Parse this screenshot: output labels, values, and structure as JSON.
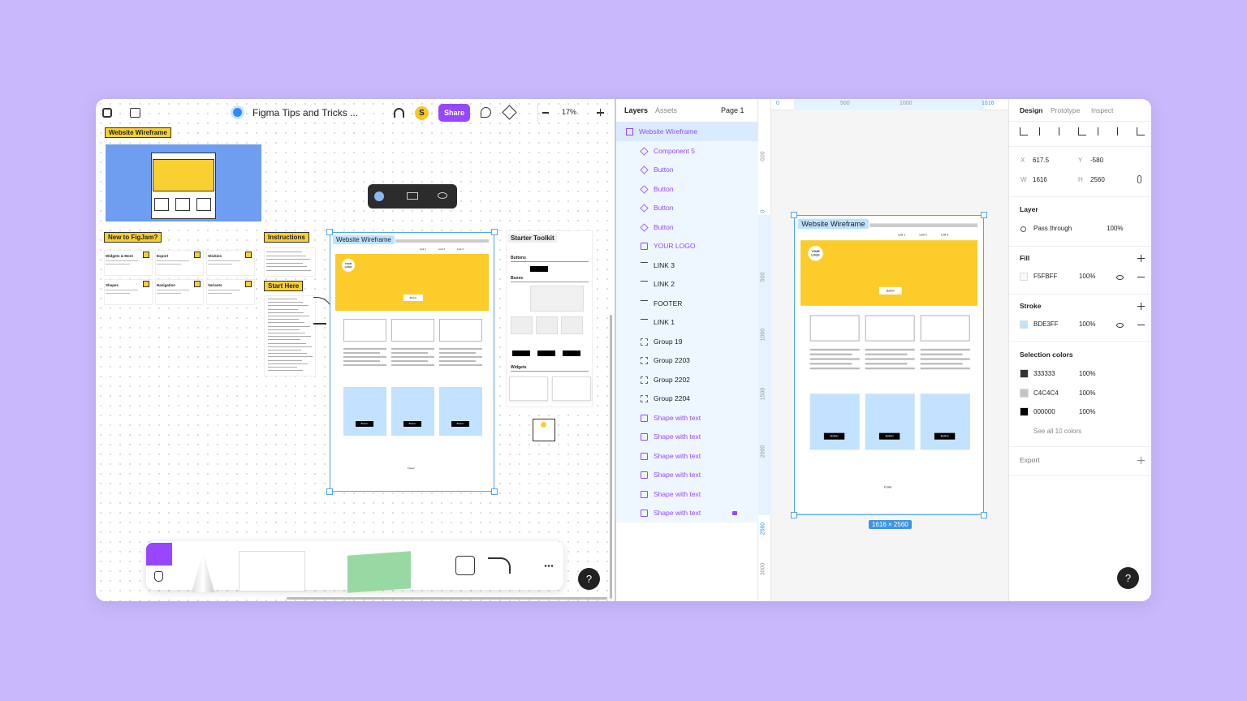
{
  "figjam": {
    "file_name": "Figma Tips and Tricks ...",
    "avatar": "S",
    "share": "Share",
    "zoom": "17%",
    "help": "?",
    "board": {
      "wireframe_label": "Website Wireframe",
      "new_label": "New to FigJam?",
      "instructions_label": "Instructions",
      "start_label": "Start Here",
      "cards": [
        "Widgets & More",
        "Export",
        "Stickies",
        "Shapes",
        "Navigation",
        "Variants"
      ]
    },
    "frame": {
      "title": "Website Wireframe",
      "logo": "YOUR LOGO",
      "links": [
        "Link 1",
        "Link 2",
        "Link 3"
      ],
      "hero_button": "Button",
      "buttons": [
        "Button",
        "Button",
        "Button"
      ],
      "footer": "Footer"
    },
    "toolkit": {
      "title": "Starter Toolkit",
      "sections": [
        "Buttons",
        "Boxes",
        "Widgets"
      ]
    }
  },
  "figma": {
    "layers_tabs": [
      "Layers",
      "Assets"
    ],
    "page": "Page 1",
    "layers": [
      {
        "name": "Website Wireframe",
        "kind": "frame"
      },
      {
        "name": "Component 5",
        "kind": "component"
      },
      {
        "name": "Button",
        "kind": "component"
      },
      {
        "name": "Button",
        "kind": "component"
      },
      {
        "name": "Button",
        "kind": "component"
      },
      {
        "name": "Button",
        "kind": "component"
      },
      {
        "name": "YOUR LOGO",
        "kind": "shape"
      },
      {
        "name": "LINK 3",
        "kind": "text"
      },
      {
        "name": "LINK 2",
        "kind": "text"
      },
      {
        "name": "FOOTER",
        "kind": "text"
      },
      {
        "name": "LINK 1",
        "kind": "text"
      },
      {
        "name": "Group 19",
        "kind": "group"
      },
      {
        "name": "Group 2203",
        "kind": "group"
      },
      {
        "name": "Group 2202",
        "kind": "group"
      },
      {
        "name": "Group 2204",
        "kind": "group"
      },
      {
        "name": "Shape with text",
        "kind": "shape"
      },
      {
        "name": "Shape with text",
        "kind": "shape"
      },
      {
        "name": "Shape with text",
        "kind": "shape"
      },
      {
        "name": "Shape with text",
        "kind": "shape"
      },
      {
        "name": "Shape with text",
        "kind": "shape"
      },
      {
        "name": "Shape with text",
        "kind": "shape",
        "locked": true
      }
    ],
    "ruler_x": [
      "0",
      "500",
      "1000",
      "1616"
    ],
    "ruler_y": [
      "-500",
      "0",
      "500",
      "1000",
      "1500",
      "2000",
      "2560",
      "3000"
    ],
    "frame": {
      "title": "Website Wireframe",
      "logo": "YOUR LOGO",
      "links": [
        "Link 1",
        "Link 2",
        "Link 3"
      ],
      "hero_button": "Button",
      "buttons": [
        "Button",
        "Button",
        "Button"
      ],
      "footer": "Footer"
    },
    "size_badge": "1616 × 2560",
    "help": "?",
    "design_tabs": [
      "Design",
      "Prototype",
      "Inspect"
    ],
    "position": {
      "x_label": "X",
      "x": "617.5",
      "y_label": "Y",
      "y": "-580",
      "w_label": "W",
      "w": "1616",
      "h_label": "H",
      "h": "2560"
    },
    "layer": {
      "title": "Layer",
      "blend": "Pass through",
      "opacity": "100%"
    },
    "fill": {
      "title": "Fill",
      "hex": "F5FBFF",
      "opacity": "100%"
    },
    "stroke": {
      "title": "Stroke",
      "hex": "BDE3FF",
      "opacity": "100%"
    },
    "selection_colors": {
      "title": "Selection colors",
      "colors": [
        {
          "hex": "333333",
          "opacity": "100%"
        },
        {
          "hex": "C4C4C4",
          "opacity": "100%"
        },
        {
          "hex": "000000",
          "opacity": "100%"
        }
      ],
      "see_all": "See all 10 colors"
    },
    "export": "Export"
  }
}
